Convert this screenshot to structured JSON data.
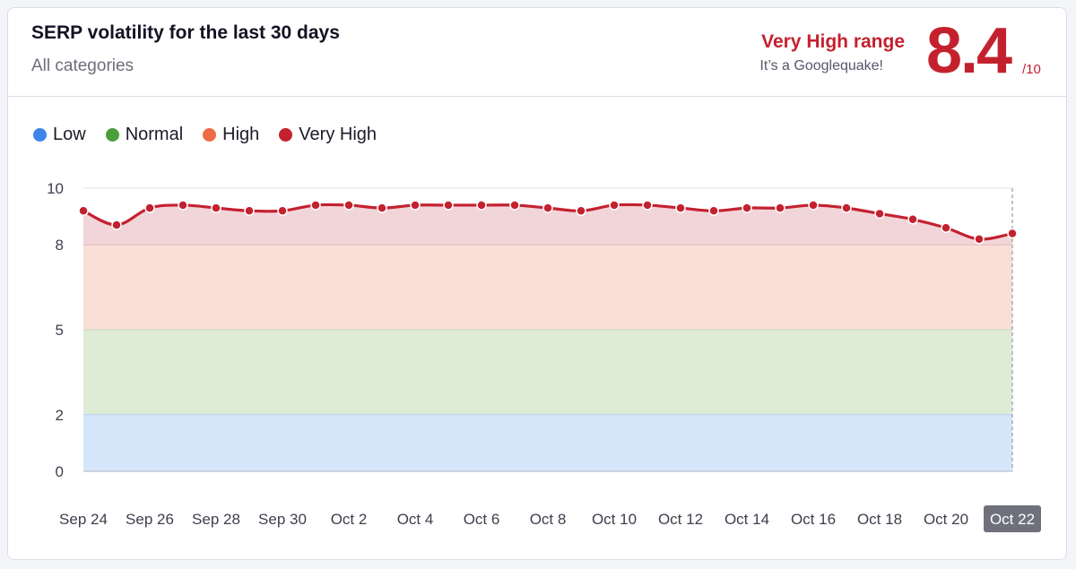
{
  "header": {
    "title": "SERP volatility for the last 30 days",
    "subtitle": "All categories",
    "range_label": "Very High range",
    "range_sub": "It’s a Googlequake!",
    "score": "8.4",
    "score_max": "/10"
  },
  "colors": {
    "accent": "#c4212f",
    "low": "#3b85eb",
    "normal": "#4a9e3c",
    "high": "#ee6c43",
    "very_high": "#c4212f",
    "band_low": "#d6e6fa",
    "band_normal": "#deecd6",
    "band_high": "#fadfd6",
    "band_very_high": "#f2d5d9",
    "highlight_tick_bg": "#6f707c"
  },
  "legend": [
    {
      "label": "Low",
      "color": "#3b85eb"
    },
    {
      "label": "Normal",
      "color": "#4a9e3c"
    },
    {
      "label": "High",
      "color": "#ee6c43"
    },
    {
      "label": "Very High",
      "color": "#c4212f"
    }
  ],
  "chart_data": {
    "type": "line",
    "x": [
      "Sep 24",
      "Sep 25",
      "Sep 26",
      "Sep 27",
      "Sep 28",
      "Sep 29",
      "Sep 30",
      "Oct 1",
      "Oct 2",
      "Oct 3",
      "Oct 4",
      "Oct 5",
      "Oct 6",
      "Oct 7",
      "Oct 8",
      "Oct 9",
      "Oct 10",
      "Oct 11",
      "Oct 12",
      "Oct 13",
      "Oct 14",
      "Oct 15",
      "Oct 16",
      "Oct 17",
      "Oct 18",
      "Oct 19",
      "Oct 20",
      "Oct 21",
      "Oct 22"
    ],
    "series": [
      {
        "values": [
          9.2,
          8.7,
          9.3,
          9.4,
          9.3,
          9.2,
          9.2,
          9.4,
          9.4,
          9.3,
          9.4,
          9.4,
          9.4,
          9.4,
          9.3,
          9.2,
          9.4,
          9.4,
          9.3,
          9.2,
          9.3,
          9.3,
          9.4,
          9.3,
          9.1,
          8.9,
          8.6,
          8.2,
          8.4
        ]
      }
    ],
    "bands": [
      {
        "name": "Low",
        "from": 0,
        "to": 2
      },
      {
        "name": "Normal",
        "from": 2,
        "to": 5
      },
      {
        "name": "High",
        "from": 5,
        "to": 8
      },
      {
        "name": "Very High",
        "from": 8,
        "to": 10
      }
    ],
    "xticks": [
      "Sep 24",
      "Sep 26",
      "Sep 28",
      "Sep 30",
      "Oct 2",
      "Oct 4",
      "Oct 6",
      "Oct 8",
      "Oct 10",
      "Oct 12",
      "Oct 14",
      "Oct 16",
      "Oct 18",
      "Oct 20",
      "Oct 22"
    ],
    "highlighted_tick": "Oct 22",
    "yticks": [
      0,
      2,
      5,
      8,
      10
    ],
    "ylim": [
      0,
      10
    ],
    "legend_position": "top-left",
    "grid": true
  }
}
